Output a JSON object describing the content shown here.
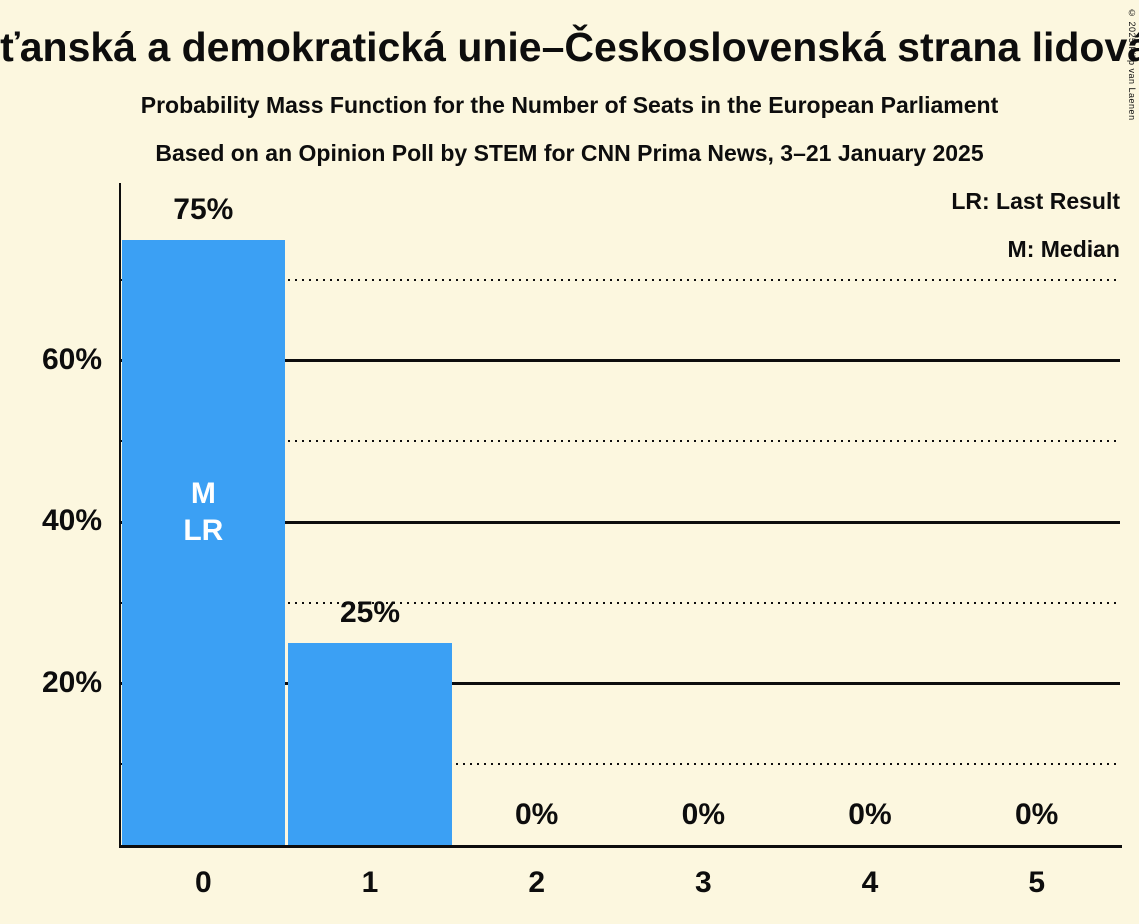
{
  "title": "Křesťanská a demokratická unie–Československá strana lidová",
  "subtitle1": "Probability Mass Function for the Number of Seats in the European Parliament",
  "subtitle2": "Based on an Opinion Poll by STEM for CNN Prima News, 3–21 January 2025",
  "legend": {
    "lr": "LR: Last Result",
    "m": "M: Median"
  },
  "copyright": "© 2025 Filip van Laenen",
  "colors": {
    "background": "#fcf7df",
    "bar": "#3ba0f4",
    "text": "#0d0d0d",
    "bar_label": "#ffffff"
  },
  "chart_data": {
    "type": "bar",
    "title": "Probability Mass Function for the Number of Seats in the European Parliament",
    "categories": [
      "0",
      "1",
      "2",
      "3",
      "4",
      "5"
    ],
    "values": [
      75,
      25,
      0,
      0,
      0,
      0
    ],
    "value_labels": [
      "75%",
      "25%",
      "0%",
      "0%",
      "0%",
      "0%"
    ],
    "bar_annotations": [
      {
        "category_index": 0,
        "lines": [
          "M",
          "LR"
        ]
      }
    ],
    "xlabel": "",
    "ylabel": "",
    "ylim": [
      0,
      82
    ],
    "yticks_solid": [
      20,
      40,
      60
    ],
    "ytick_labels": [
      "20%",
      "40%",
      "60%"
    ],
    "yticks_dotted": [
      10,
      30,
      50,
      70
    ],
    "grid": "horizontal",
    "legend_position": "top-right",
    "median_marker": "M",
    "last_result_marker": "LR"
  }
}
